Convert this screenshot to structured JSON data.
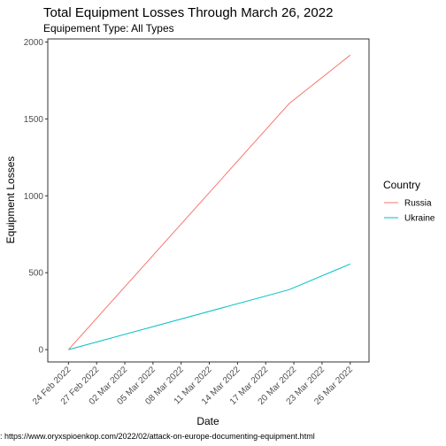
{
  "chart_data": {
    "type": "line",
    "title": "Total Equipment Losses Through March 26, 2022",
    "subtitle": "Equipement Type: All Types",
    "xlabel": "Date",
    "ylabel": "Equipment Losses",
    "caption": ": https://www.oryxspioenkop.com/2022/02/attack-on-europe-documenting-equipment.html",
    "x_ticks": [
      {
        "day": 0,
        "label": "24 Feb 2022"
      },
      {
        "day": 3,
        "label": "27 Feb 2022"
      },
      {
        "day": 6,
        "label": "02 Mar 2022"
      },
      {
        "day": 9,
        "label": "05 Mar 2022"
      },
      {
        "day": 12,
        "label": "08 Mar 2022"
      },
      {
        "day": 15,
        "label": "11 Mar 2022"
      },
      {
        "day": 18,
        "label": "14 Mar 2022"
      },
      {
        "day": 21,
        "label": "17 Mar 2022"
      },
      {
        "day": 24,
        "label": "20 Mar 2022"
      },
      {
        "day": 27,
        "label": "23 Mar 2022"
      },
      {
        "day": 30,
        "label": "26 Mar 2022"
      }
    ],
    "y_ticks": [
      0,
      500,
      1000,
      1500,
      2000
    ],
    "xlim": [
      -2.2,
      32
    ],
    "ylim": [
      -80,
      2020
    ],
    "legend": {
      "title": "Country",
      "position": "right"
    },
    "series": [
      {
        "name": "Russia",
        "color": "#F8766D",
        "points": [
          [
            0,
            0
          ],
          [
            23.5,
            1600
          ],
          [
            30,
            1915
          ]
        ]
      },
      {
        "name": "Ukraine",
        "color": "#00BFC4",
        "points": [
          [
            0,
            0
          ],
          [
            23.5,
            390
          ],
          [
            30,
            557
          ]
        ]
      }
    ]
  }
}
